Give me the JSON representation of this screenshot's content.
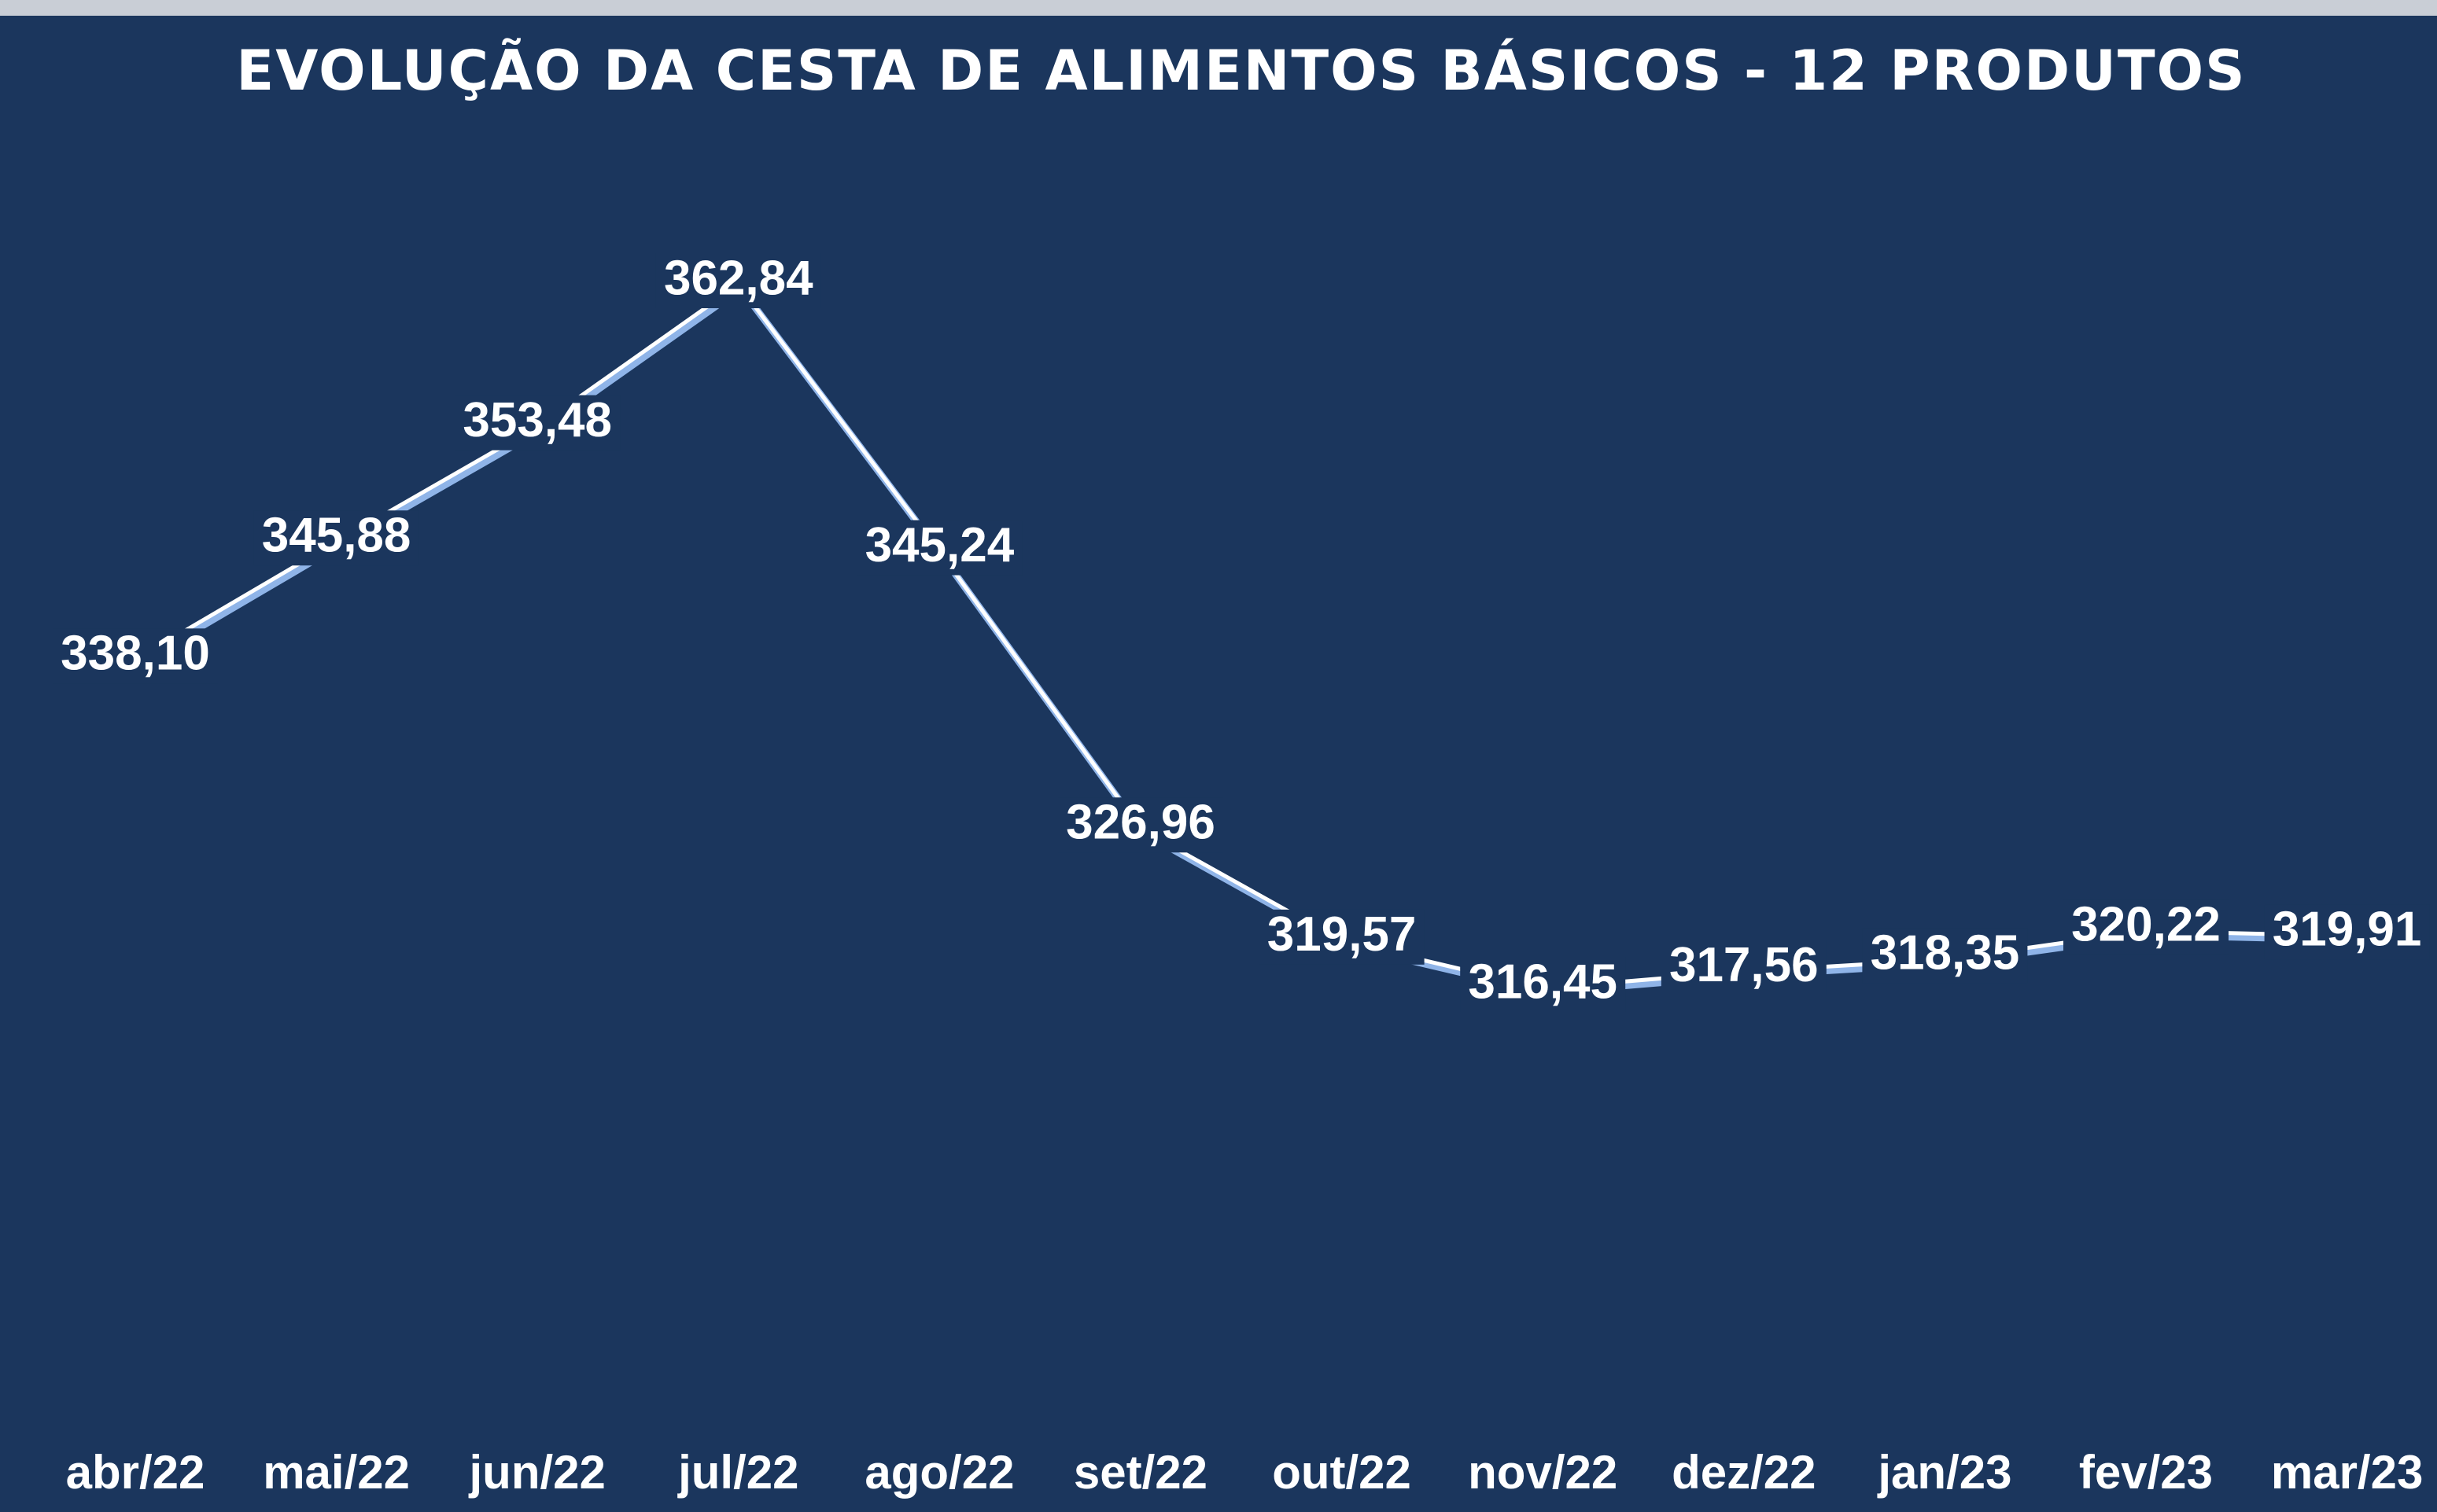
{
  "chart_data": {
    "type": "line",
    "title": "EVOLUÇÃO DA CESTA DE ALIMENTOS BÁSICOS - 12 PRODUTOS",
    "categories": [
      "abr/22",
      "mai/22",
      "jun/22",
      "jul/22",
      "ago/22",
      "set/22",
      "out/22",
      "nov/22",
      "dez/22",
      "jan/23",
      "fev/23",
      "mar/23"
    ],
    "values": [
      338.1,
      345.88,
      353.48,
      362.84,
      345.24,
      326.96,
      319.57,
      316.45,
      317.56,
      318.35,
      320.22,
      319.91
    ],
    "value_labels": [
      "338,10",
      "345,88",
      "353,48",
      "362,84",
      "345,24",
      "326,96",
      "319,57",
      "316,45",
      "317,56",
      "318,35",
      "320,22",
      "319,91"
    ],
    "color": "#ffffff"
  }
}
